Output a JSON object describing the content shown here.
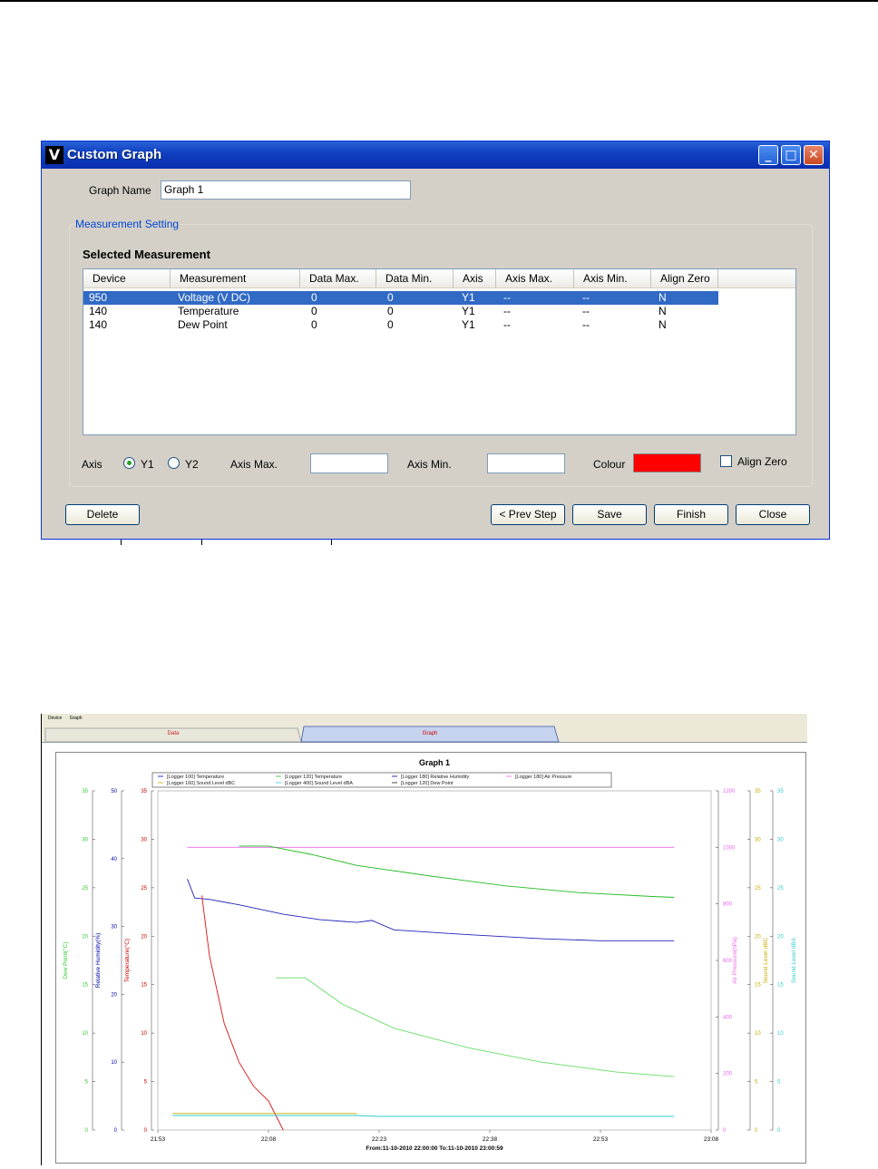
{
  "dialog": {
    "title": "Custom Graph",
    "app_icon_letter": "V",
    "graph_name_label": "Graph Name",
    "graph_name_value": "Graph 1",
    "group_title": "Measurement Setting",
    "selected_title": "Selected Measurement",
    "columns": [
      "Device",
      "Measurement",
      "Data Max.",
      "Data Min.",
      "Axis",
      "Axis Max.",
      "Axis Min.",
      "Align Zero"
    ],
    "rows": [
      [
        "950",
        "Voltage (V DC)",
        "0",
        "0",
        "Y1",
        "--",
        "--",
        "N"
      ],
      [
        "140",
        "Temperature",
        "0",
        "0",
        "Y1",
        "--",
        "--",
        "N"
      ],
      [
        "140",
        "Dew Point",
        "0",
        "0",
        "Y1",
        "--",
        "--",
        "N"
      ]
    ],
    "selected_row": 0,
    "axis_label": "Axis",
    "y1_label": "Y1",
    "y2_label": "Y2",
    "axis_selected": "Y1",
    "axis_max_label": "Axis Max.",
    "axis_max_value": "",
    "axis_min_label": "Axis Min.",
    "axis_min_value": "",
    "colour_label": "Colour",
    "colour_value": "#ff0000",
    "align_zero_label": "Align Zero",
    "align_zero_checked": false,
    "buttons": {
      "delete": "Delete",
      "prev": "< Prev Step",
      "save": "Save",
      "finish": "Finish",
      "close": "Close"
    }
  },
  "app": {
    "menu": [
      "Device",
      "Graph"
    ],
    "tabs": [
      "Data",
      "Graph"
    ],
    "active_tab": "Graph"
  },
  "chart_data": {
    "type": "line",
    "title": "Graph 1",
    "xlabel": "From:11-10-2010 22:00:00  To:11-10-2010 23:00:59",
    "x_ticks": [
      "21:53",
      "22:08",
      "22:23",
      "22:38",
      "22:53",
      "23:08"
    ],
    "legend": [
      {
        "name": "[Logger 100] Temperature",
        "color": "#0000cc"
      },
      {
        "name": "[Logger 120] Temperature",
        "color": "#22bb22"
      },
      {
        "name": "[Logger 180] Relative Humidity",
        "color": "#0000aa"
      },
      {
        "name": "[Logger 180] Air Pressure",
        "color": "#ee66ee"
      },
      {
        "name": "[Logger 160] Sound Level dBC",
        "color": "#ccaa00"
      },
      {
        "name": "[Logger 400] Sound Level dBA",
        "color": "#33cccc"
      },
      {
        "name": "[Logger 120] Dew Point",
        "color": "#222222"
      }
    ],
    "axes": {
      "dew_point": {
        "label": "Dew Point(°C)",
        "ticks": [
          "35",
          "30",
          "25",
          "20",
          "15",
          "10",
          "5",
          "0"
        ],
        "color": "#33cc33"
      },
      "humidity": {
        "label": "Relative Humidity(%)",
        "ticks": [
          "50",
          "40",
          "30",
          "20",
          "10",
          "0"
        ],
        "color": "#0000aa"
      },
      "temperature": {
        "label": "Temperature(°C)",
        "ticks": [
          "35",
          "30",
          "25",
          "20",
          "15",
          "10",
          "5",
          "0"
        ],
        "color": "#cc0000"
      },
      "pressure": {
        "label": "Air Pressure(hPa)",
        "ticks": [
          "1200",
          "1000",
          "800",
          "600",
          "400",
          "200",
          "0"
        ],
        "color": "#ee66ee"
      },
      "dbc": {
        "label": "Sound Level dBC",
        "ticks": [
          "35",
          "30",
          "25",
          "20",
          "15",
          "10",
          "5",
          "0"
        ],
        "color": "#ccaa00"
      },
      "dba": {
        "label": "Sound Level dBA",
        "ticks": [
          "35",
          "30",
          "25",
          "20",
          "15",
          "10",
          "5",
          "0"
        ],
        "color": "#33cccc"
      }
    },
    "x_range": [
      "21:53",
      "23:08"
    ],
    "series": [
      {
        "name": "[Logger 180] Air Pressure",
        "axis": "pressure",
        "color": "#ee66ee",
        "x": [
          "21:57",
          "22:38",
          "23:03"
        ],
        "y": [
          1000,
          1000,
          1000
        ]
      },
      {
        "name": "[Logger 120] Temperature",
        "axis": "temperature",
        "color": "#22bb22",
        "x": [
          "22:04",
          "22:08",
          "22:14",
          "22:20",
          "22:30",
          "22:40",
          "22:50",
          "23:00",
          "23:03"
        ],
        "y": [
          29.3,
          29.3,
          28.4,
          27.3,
          26.2,
          25.2,
          24.5,
          24.1,
          24.0
        ]
      },
      {
        "name": "[Logger 180] Relative Humidity",
        "axis": "humidity",
        "color": "#2222bb",
        "x": [
          "21:57",
          "21:58",
          "22:00",
          "22:04",
          "22:10",
          "22:15",
          "22:20",
          "22:22",
          "22:25",
          "22:35",
          "22:45",
          "22:53",
          "23:03"
        ],
        "y": [
          37.0,
          34.2,
          34.0,
          33.2,
          31.8,
          31.0,
          30.6,
          30.9,
          29.5,
          28.8,
          28.2,
          27.9,
          27.9
        ]
      },
      {
        "name": "[Logger 100] Temperature",
        "axis": "temperature",
        "color": "#dd1111",
        "x": [
          "21:59",
          "21:59",
          "22:00",
          "22:02",
          "22:04",
          "22:06",
          "22:08",
          "22:09",
          "22:10"
        ],
        "y": [
          24.2,
          24.0,
          18.0,
          11.0,
          7.0,
          4.5,
          3.0,
          1.5,
          0
        ]
      },
      {
        "name": "[Logger 120] Dew Point",
        "axis": "dew_point",
        "color": "#66dd66",
        "x": [
          "22:09",
          "22:11",
          "22:13",
          "22:18",
          "22:25",
          "22:35",
          "22:45",
          "22:55",
          "23:03"
        ],
        "y": [
          15.7,
          15.7,
          15.7,
          13.0,
          10.5,
          8.5,
          7.0,
          6.0,
          5.5
        ]
      },
      {
        "name": "[Logger 160] Sound Level dBC",
        "axis": "dbc",
        "color": "#ccaa00",
        "x": [
          "21:55",
          "22:20"
        ],
        "y": [
          1.7,
          1.7
        ]
      },
      {
        "name": "[Logger 400] Sound Level dBA",
        "axis": "dba",
        "color": "#33cccc",
        "x": [
          "21:55",
          "22:20",
          "22:23",
          "23:03"
        ],
        "y": [
          1.5,
          1.5,
          1.4,
          1.4
        ]
      }
    ]
  }
}
